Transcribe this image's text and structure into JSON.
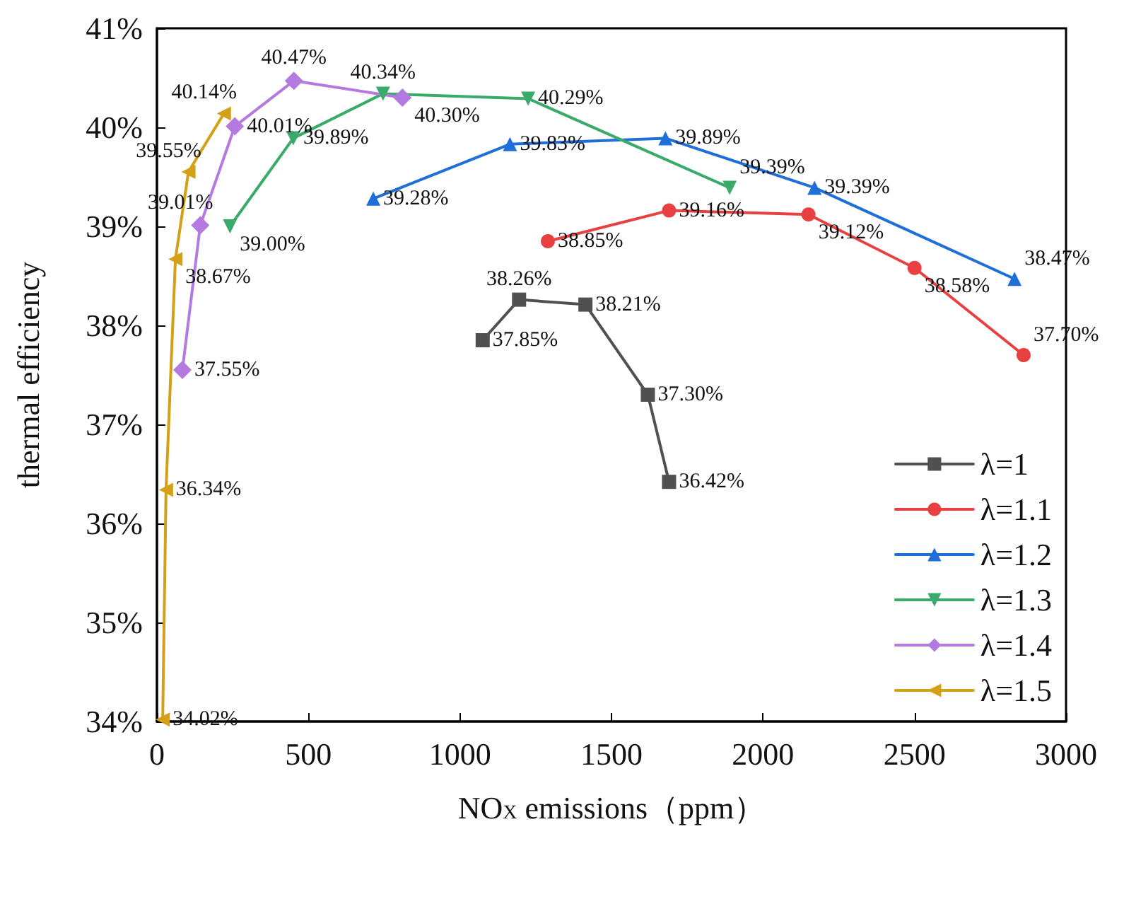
{
  "chart_data": {
    "type": "line",
    "xlabel": "NO$_{X}$ emissions（ppm）",
    "ylabel": "thermal efficiency",
    "xlim": [
      0,
      3000
    ],
    "xticks": [
      0,
      500,
      1000,
      1500,
      2000,
      2500,
      3000
    ],
    "ylim": [
      34,
      41
    ],
    "yticks": [
      {
        "value": 34,
        "label": "34%"
      },
      {
        "value": 35,
        "label": "35%"
      },
      {
        "value": 36,
        "label": "36%"
      },
      {
        "value": 37,
        "label": "37%"
      },
      {
        "value": 38,
        "label": "38%"
      },
      {
        "value": 39,
        "label": "39%"
      },
      {
        "value": 40,
        "label": "40%"
      },
      {
        "value": 41,
        "label": "41%"
      }
    ],
    "grid": false,
    "legend": "bottom right",
    "line_style": "solid",
    "series": [
      {
        "name": "λ=1",
        "color": "#505050",
        "marker": "square",
        "x": [
          1075,
          1195,
          1414,
          1620,
          1690
        ],
        "values": [
          37.85,
          38.26,
          38.21,
          37.3,
          36.42
        ],
        "value_labels": [
          "37.85%",
          "38.26%",
          "38.21%",
          "37.30%",
          "36.42%"
        ]
      },
      {
        "name": "λ=1.1",
        "color": "#e84040",
        "marker": "circle",
        "x": [
          1290,
          1690,
          2150,
          2500,
          2860
        ],
        "values": [
          38.85,
          39.16,
          39.12,
          38.58,
          37.7
        ],
        "value_labels": [
          "38.85%",
          "39.16%",
          "39.12%",
          "38.58%",
          "37.70%"
        ]
      },
      {
        "name": "λ=1.2",
        "color": "#1f6fd8",
        "marker": "triangle",
        "x": [
          714,
          1165,
          1678,
          2170,
          2830
        ],
        "values": [
          39.28,
          39.83,
          39.89,
          39.39,
          38.47
        ],
        "value_labels": [
          "39.28%",
          "39.83%",
          "39.89%",
          "39.39%",
          "38.47%"
        ]
      },
      {
        "name": "λ=1.3",
        "color": "#3aaa6a",
        "marker": "triangle-down",
        "x": [
          241,
          450,
          746,
          1225,
          1890
        ],
        "values": [
          39.0,
          39.89,
          40.34,
          40.29,
          39.39
        ],
        "value_labels": [
          "39.00%",
          "39.89%",
          "40.34%",
          "40.29%",
          "39.39%"
        ]
      },
      {
        "name": "λ=1.4",
        "color": "#b57ae0",
        "marker": "diamond",
        "x": [
          84,
          143,
          257,
          452,
          810
        ],
        "values": [
          37.55,
          39.01,
          40.01,
          40.47,
          40.3
        ],
        "value_labels": [
          "37.55%",
          "39.01%",
          "40.01%",
          "40.47%",
          "40.30%"
        ]
      },
      {
        "name": "λ=1.5",
        "color": "#d4a017",
        "marker": "triangle-left",
        "x": [
          19,
          30,
          61,
          104,
          221
        ],
        "values": [
          34.02,
          36.34,
          38.67,
          39.55,
          40.14
        ],
        "value_labels": [
          "34.02%",
          "36.34%",
          "38.67%",
          "39.55%",
          "40.14%"
        ]
      }
    ]
  }
}
